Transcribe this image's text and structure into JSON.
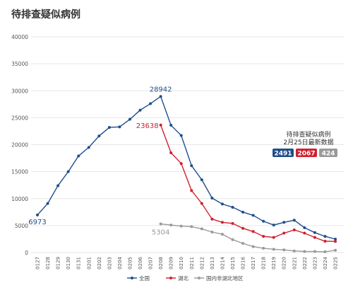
{
  "title": "待排查疑似病例",
  "colors": {
    "national": "#1f4e8c",
    "hubei": "#d0202e",
    "outside": "#9a9a9a"
  },
  "chart_data": {
    "type": "line",
    "title": "待排查疑似病例",
    "xlabel": "",
    "ylabel": "",
    "ylim": [
      0,
      40000
    ],
    "yticks": [
      0,
      5000,
      10000,
      15000,
      20000,
      25000,
      30000,
      35000,
      40000
    ],
    "grid": true,
    "legend": "bottom",
    "x": [
      "0127",
      "0128",
      "0129",
      "0130",
      "0131",
      "0201",
      "0202",
      "0203",
      "0204",
      "0205",
      "0206",
      "0207",
      "0208",
      "0209",
      "0210",
      "0211",
      "0212",
      "0213",
      "0214",
      "0215",
      "0216",
      "0217",
      "0218",
      "0219",
      "0220",
      "0221",
      "0222",
      "0223",
      "0224",
      "0225"
    ],
    "series": [
      {
        "name": "全国",
        "color": "#1f4e8c",
        "values": [
          6973,
          9100,
          12400,
          15000,
          17900,
          19500,
          21600,
          23200,
          23300,
          24700,
          26400,
          27600,
          28942,
          23600,
          21700,
          16100,
          13500,
          10100,
          9000,
          8400,
          7500,
          6900,
          5800,
          5100,
          5600,
          6000,
          4600,
          3700,
          3000,
          2491
        ]
      },
      {
        "name": "湖北",
        "color": "#d0202e",
        "values": [
          null,
          null,
          null,
          null,
          null,
          null,
          null,
          null,
          null,
          null,
          null,
          null,
          23638,
          18500,
          16500,
          11500,
          9100,
          6200,
          5600,
          5400,
          4500,
          3900,
          3000,
          2800,
          3600,
          4200,
          3600,
          2800,
          2100,
          2067
        ]
      },
      {
        "name": "国内非湖北地区",
        "color": "#9a9a9a",
        "values": [
          null,
          null,
          null,
          null,
          null,
          null,
          null,
          null,
          null,
          null,
          null,
          null,
          5304,
          5100,
          4900,
          4800,
          4400,
          3800,
          3400,
          2400,
          1700,
          1100,
          800,
          600,
          500,
          300,
          200,
          200,
          150,
          424
        ]
      }
    ],
    "annotations": [
      {
        "label": "6973",
        "series": "全国",
        "x": "0127"
      },
      {
        "label": "28942",
        "series": "全国",
        "x": "0208"
      },
      {
        "label": "23638",
        "series": "湖北",
        "x": "0208"
      },
      {
        "label": "5304",
        "series": "国内非湖北地区",
        "x": "0208"
      }
    ],
    "info_box": {
      "line1": "待排查疑似病例",
      "line2": "2月25日最新数据",
      "badges": [
        {
          "value": "2491",
          "color": "#1f4e8c"
        },
        {
          "value": "2067",
          "color": "#d0202e"
        },
        {
          "value": "424",
          "color": "#9a9a9a"
        }
      ]
    }
  }
}
